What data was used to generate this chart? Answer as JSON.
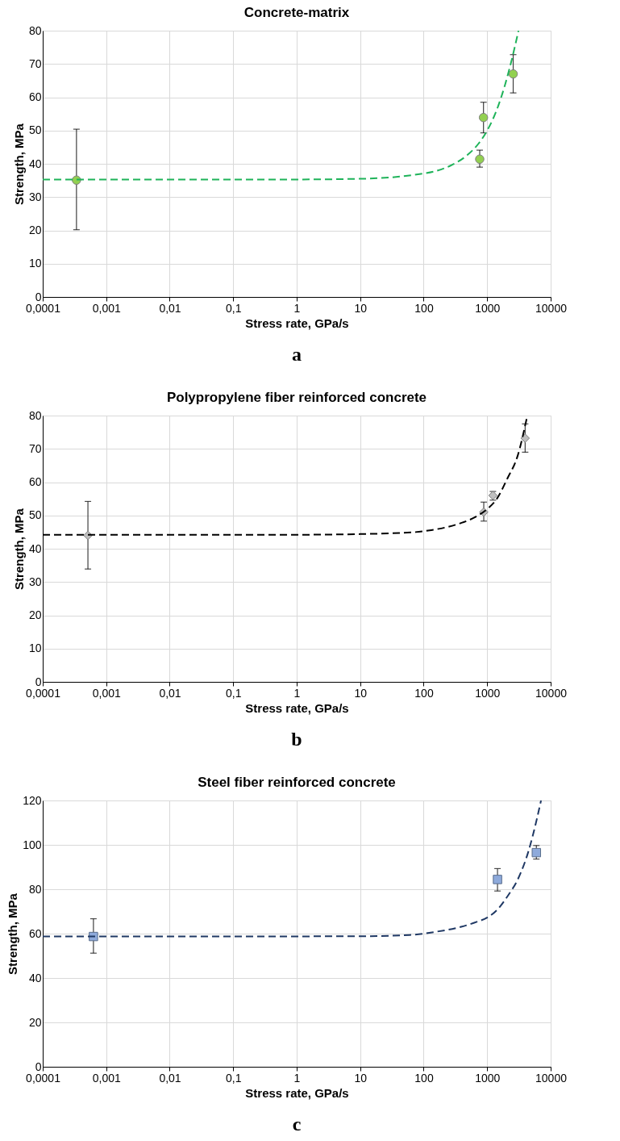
{
  "chart_data": [
    {
      "type": "scatter",
      "title": "Concrete-matrix",
      "xlabel": "Stress rate, GPa/s",
      "ylabel": "Strength, MPa",
      "log": "x",
      "grid": true,
      "annotations": [
        "a"
      ],
      "xlim": [
        0.0001,
        10000
      ],
      "xticks": [
        {
          "value": 0.0001,
          "label": "0,0001"
        },
        {
          "value": 0.001,
          "label": "0,001"
        },
        {
          "value": 0.01,
          "label": "0,01"
        },
        {
          "value": 0.1,
          "label": "0,1"
        },
        1,
        10,
        100,
        1000,
        10000
      ],
      "ylim": [
        0,
        80
      ],
      "yticks": [
        0,
        10,
        20,
        30,
        40,
        50,
        60,
        70,
        80
      ],
      "series": [
        {
          "type": "scatter",
          "marker": "circle",
          "color": "#92d050",
          "x": [
            0.00034,
            763,
            875,
            2570
          ],
          "values": [
            35.1,
            41.4,
            53.9,
            67.0
          ],
          "errors": [
            [
              20.2,
              50.4
            ],
            [
              39.0,
              44.1
            ],
            [
              49.3,
              58.5
            ],
            [
              61.3,
              72.8
            ]
          ]
        },
        {
          "type": "line",
          "marker": "none",
          "line_style": "dashed",
          "color": "#1fb35a",
          "x": [
            0.0001,
            1,
            10,
            85.7,
            153.5,
            275,
            492,
            726,
            1000,
            1436,
            1922,
            2448,
            3113
          ],
          "values": [
            35.3,
            35.3,
            35.5,
            36.9,
            37.8,
            39.6,
            42.7,
            46.0,
            50.0,
            56.5,
            63.9,
            71.4,
            80.0
          ]
        }
      ]
    },
    {
      "type": "scatter",
      "title": "Polypropylene fiber reinforced concrete",
      "xlabel": "Stress rate, GPa/s",
      "ylabel": "Strength, MPa",
      "log": "x",
      "grid": true,
      "annotations": [
        "b"
      ],
      "xlim": [
        0.0001,
        10000
      ],
      "xticks": [
        {
          "value": 0.0001,
          "label": "0,0001"
        },
        {
          "value": 0.001,
          "label": "0,001"
        },
        {
          "value": 0.01,
          "label": "0,01"
        },
        {
          "value": 0.1,
          "label": "0,1"
        },
        1,
        10,
        100,
        1000,
        10000
      ],
      "ylim": [
        0,
        80
      ],
      "yticks": [
        0,
        10,
        20,
        30,
        40,
        50,
        60,
        70,
        80
      ],
      "series": [
        {
          "type": "scatter",
          "marker": "diamond",
          "color": "#bfbfbf",
          "x": [
            0.000515,
            884,
            1232,
            3965
          ],
          "values": [
            44.0,
            51.0,
            56.0,
            73.2
          ],
          "errors": [
            [
              33.9,
              54.2
            ],
            [
              48.3,
              54.0
            ],
            [
              54.6,
              57.2
            ],
            [
              69.0,
              77.5
            ]
          ]
        },
        {
          "type": "line",
          "marker": "none",
          "line_style": "dashed",
          "color": "#000000",
          "x": [
            0.0001,
            1,
            10,
            74.5,
            132,
            233,
            413,
            664,
            1000,
            1420,
            2081,
            3041,
            4245
          ],
          "values": [
            44.2,
            44.2,
            44.4,
            45.0,
            45.6,
            46.5,
            47.9,
            49.6,
            51.9,
            55.0,
            61.1,
            68.1,
            79.6
          ]
        }
      ]
    },
    {
      "type": "scatter",
      "title": "Steel fiber reinforced concrete",
      "xlabel": "Stress rate, GPa/s",
      "ylabel": "Strength, MPa",
      "log": "x",
      "grid": true,
      "annotations": [
        "c"
      ],
      "xlim": [
        0.0001,
        10000
      ],
      "xticks": [
        {
          "value": 0.0001,
          "label": "0,0001"
        },
        {
          "value": 0.001,
          "label": "0,001"
        },
        {
          "value": 0.01,
          "label": "0,01"
        },
        {
          "value": 0.1,
          "label": "0,1"
        },
        1,
        10,
        100,
        1000,
        10000
      ],
      "ylim": [
        0,
        120
      ],
      "yticks": [
        0,
        20,
        40,
        60,
        80,
        100,
        120
      ],
      "series": [
        {
          "type": "scatter",
          "marker": "square",
          "color": "#8eaadb",
          "x": [
            0.000629,
            1455,
            5955
          ],
          "values": [
            58.7,
            84.4,
            96.5
          ],
          "errors": [
            [
              51.2,
              66.7
            ],
            [
              79.2,
              89.3
            ],
            [
              93.6,
              99.7
            ]
          ]
        },
        {
          "type": "line",
          "marker": "none",
          "line_style": "dashed",
          "color": "#1f3864",
          "x": [
            0.0001,
            10,
            59.7,
            152.7,
            391,
            687,
            1000,
            1455,
            2122,
            3090,
            4490,
            5955,
            7050
          ],
          "values": [
            58.7,
            58.8,
            59.4,
            60.8,
            63.1,
            65.3,
            67.2,
            70.9,
            77.1,
            84.9,
            97.3,
            110.7,
            120.0
          ]
        }
      ]
    }
  ]
}
